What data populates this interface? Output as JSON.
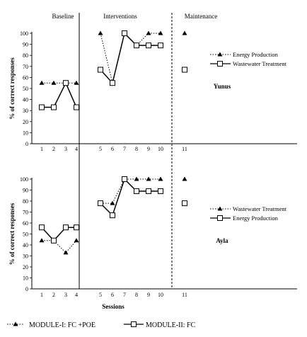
{
  "phases": {
    "baseline": "Baseline",
    "interventions": "Interventions",
    "maintenance": "Maintenance"
  },
  "x_label": "Sessions",
  "bottom_legend": {
    "dotted": "MODULE-I: FC +POE",
    "solid": "MODULE-II: FC"
  },
  "chart_data": [
    {
      "type": "line",
      "participant": "Yunus",
      "ylabel": "% of correct responses",
      "xlabel": "",
      "ylim": [
        0,
        100
      ],
      "y_ticks": [
        0,
        10,
        20,
        30,
        40,
        50,
        60,
        70,
        80,
        90,
        100
      ],
      "x_ticks": [
        1,
        2,
        3,
        4,
        5,
        6,
        7,
        8,
        9,
        10,
        11
      ],
      "grid": false,
      "legend_position": "right",
      "series": [
        {
          "name": "Energy Production",
          "style": "dotted",
          "marker": "triangle",
          "phases": [
            {
              "x": [
                1,
                2,
                3,
                4
              ],
              "y": [
                55,
                55,
                55,
                55
              ]
            },
            {
              "x": [
                5,
                6,
                7,
                8,
                9,
                10
              ],
              "y": [
                100,
                55,
                100,
                89,
                100,
                100
              ]
            },
            {
              "x": [
                11
              ],
              "y": [
                100
              ]
            }
          ]
        },
        {
          "name": "Wastewater Treatment",
          "style": "solid",
          "marker": "square",
          "phases": [
            {
              "x": [
                1,
                2,
                3,
                4
              ],
              "y": [
                33,
                33,
                55,
                33
              ]
            },
            {
              "x": [
                5,
                6,
                7,
                8,
                9,
                10
              ],
              "y": [
                67,
                55,
                100,
                89,
                89,
                89
              ]
            },
            {
              "x": [
                11
              ],
              "y": [
                67
              ]
            }
          ]
        }
      ]
    },
    {
      "type": "line",
      "participant": "Ayla",
      "ylabel": "% of correct responses",
      "xlabel": "Sessions",
      "ylim": [
        0,
        100
      ],
      "y_ticks": [
        0,
        10,
        20,
        30,
        40,
        50,
        60,
        70,
        80,
        90,
        100
      ],
      "x_ticks": [
        1,
        2,
        3,
        4,
        5,
        6,
        7,
        8,
        9,
        10,
        11
      ],
      "grid": false,
      "legend_position": "right",
      "series": [
        {
          "name": "Wastewater Treatment",
          "style": "dotted",
          "marker": "triangle",
          "phases": [
            {
              "x": [
                1,
                2,
                3,
                4
              ],
              "y": [
                44,
                44,
                33,
                44
              ]
            },
            {
              "x": [
                5,
                6,
                7,
                8,
                9,
                10
              ],
              "y": [
                78,
                78,
                100,
                100,
                100,
                100
              ]
            },
            {
              "x": [
                11
              ],
              "y": [
                100
              ]
            }
          ]
        },
        {
          "name": "Energy Production",
          "style": "solid",
          "marker": "square",
          "phases": [
            {
              "x": [
                1,
                2,
                3,
                4
              ],
              "y": [
                56,
                44,
                56,
                56
              ]
            },
            {
              "x": [
                5,
                6,
                7,
                8,
                9,
                10
              ],
              "y": [
                78,
                67,
                100,
                89,
                89,
                89
              ]
            },
            {
              "x": [
                11
              ],
              "y": [
                78
              ]
            }
          ]
        }
      ]
    }
  ]
}
